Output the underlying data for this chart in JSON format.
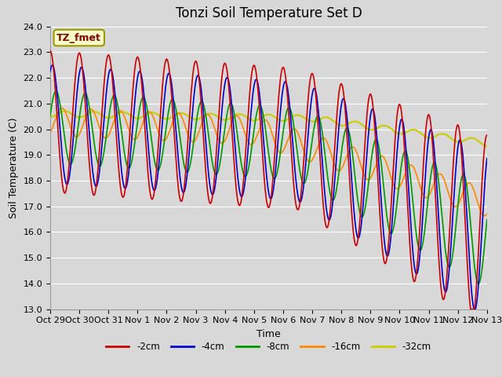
{
  "title": "Tonzi Soil Temperature Set D",
  "xlabel": "Time",
  "ylabel": "Soil Temperature (C)",
  "ylim": [
    13.0,
    24.0
  ],
  "yticks": [
    13.0,
    14.0,
    15.0,
    16.0,
    17.0,
    18.0,
    19.0,
    20.0,
    21.0,
    22.0,
    23.0,
    24.0
  ],
  "xtick_labels": [
    "Oct 29",
    "Oct 30",
    "Oct 31",
    "Nov 1",
    "Nov 2",
    "Nov 3",
    "Nov 4",
    "Nov 5",
    "Nov 6",
    "Nov 7",
    "Nov 8",
    "Nov 9",
    "Nov 10",
    "Nov 11",
    "Nov 12",
    "Nov 13"
  ],
  "legend_labels": [
    "-2cm",
    "-4cm",
    "-8cm",
    "-16cm",
    "-32cm"
  ],
  "legend_colors": [
    "#cc0000",
    "#0000cc",
    "#009900",
    "#ff8800",
    "#cccc00"
  ],
  "line_widths": [
    1.2,
    1.2,
    1.2,
    1.2,
    1.5
  ],
  "annotation_text": "TZ_fmet",
  "annotation_color": "#880000",
  "annotation_bg": "#ffffcc",
  "annotation_border": "#999900",
  "background_color": "#d8d8d8",
  "plot_bg_color": "#d8d8d8",
  "grid_color": "#ffffff",
  "title_fontsize": 12,
  "axis_label_fontsize": 9,
  "tick_fontsize": 8
}
